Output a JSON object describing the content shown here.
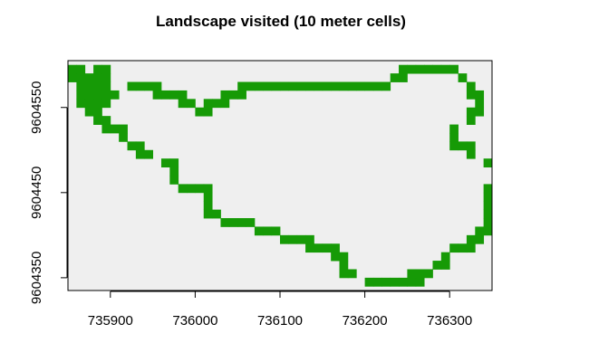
{
  "chart_data": {
    "type": "heatmap",
    "title": "Landscape visited (10 meter cells)",
    "xlabel": "",
    "ylabel": "",
    "xlim": [
      735850,
      736350
    ],
    "ylim": [
      9604335,
      9604605
    ],
    "x_ticks": [
      735900,
      736000,
      736100,
      736200,
      736300
    ],
    "y_ticks": [
      9604350,
      9604450,
      9604550
    ],
    "x_tick_labels": [
      "735900",
      "736000",
      "736100",
      "736200",
      "736300"
    ],
    "y_tick_labels": [
      "9604350",
      "9604450",
      "9604550"
    ],
    "cell_size": 10,
    "colors": {
      "background_cell": "#efefef",
      "visited_cell": "#169a06"
    },
    "visited_cells": [
      [
        735850,
        9604590
      ],
      [
        735860,
        9604590
      ],
      [
        735880,
        9604590
      ],
      [
        735890,
        9604590
      ],
      [
        735850,
        9604580
      ],
      [
        735860,
        9604580
      ],
      [
        735870,
        9604580
      ],
      [
        735880,
        9604580
      ],
      [
        735890,
        9604580
      ],
      [
        735860,
        9604570
      ],
      [
        735870,
        9604570
      ],
      [
        735880,
        9604570
      ],
      [
        735890,
        9604570
      ],
      [
        735860,
        9604560
      ],
      [
        735870,
        9604560
      ],
      [
        735880,
        9604560
      ],
      [
        735890,
        9604560
      ],
      [
        735900,
        9604560
      ],
      [
        735860,
        9604550
      ],
      [
        735870,
        9604550
      ],
      [
        735880,
        9604550
      ],
      [
        735890,
        9604550
      ],
      [
        735870,
        9604540
      ],
      [
        735880,
        9604540
      ],
      [
        735880,
        9604530
      ],
      [
        735890,
        9604530
      ],
      [
        735890,
        9604520
      ],
      [
        735900,
        9604520
      ],
      [
        735910,
        9604520
      ],
      [
        735910,
        9604510
      ],
      [
        735920,
        9604500
      ],
      [
        735930,
        9604500
      ],
      [
        735930,
        9604490
      ],
      [
        735940,
        9604490
      ],
      [
        735960,
        9604480
      ],
      [
        735970,
        9604480
      ],
      [
        735970,
        9604470
      ],
      [
        735970,
        9604460
      ],
      [
        735980,
        9604450
      ],
      [
        735990,
        9604450
      ],
      [
        736000,
        9604450
      ],
      [
        736010,
        9604450
      ],
      [
        736010,
        9604440
      ],
      [
        736010,
        9604430
      ],
      [
        736010,
        9604420
      ],
      [
        736020,
        9604420
      ],
      [
        736030,
        9604410
      ],
      [
        736040,
        9604410
      ],
      [
        736050,
        9604410
      ],
      [
        736060,
        9604410
      ],
      [
        736070,
        9604400
      ],
      [
        736080,
        9604400
      ],
      [
        736090,
        9604400
      ],
      [
        736100,
        9604390
      ],
      [
        736110,
        9604390
      ],
      [
        736120,
        9604390
      ],
      [
        736130,
        9604390
      ],
      [
        736130,
        9604380
      ],
      [
        736140,
        9604380
      ],
      [
        736150,
        9604380
      ],
      [
        736160,
        9604380
      ],
      [
        736160,
        9604370
      ],
      [
        736170,
        9604370
      ],
      [
        736170,
        9604360
      ],
      [
        736170,
        9604350
      ],
      [
        736180,
        9604350
      ],
      [
        736200,
        9604340
      ],
      [
        736210,
        9604340
      ],
      [
        736220,
        9604340
      ],
      [
        736230,
        9604340
      ],
      [
        736240,
        9604340
      ],
      [
        736250,
        9604340
      ],
      [
        736260,
        9604340
      ],
      [
        736250,
        9604350
      ],
      [
        736260,
        9604350
      ],
      [
        736270,
        9604350
      ],
      [
        736280,
        9604360
      ],
      [
        736290,
        9604360
      ],
      [
        736290,
        9604370
      ],
      [
        736300,
        9604380
      ],
      [
        736310,
        9604380
      ],
      [
        736320,
        9604380
      ],
      [
        736320,
        9604390
      ],
      [
        736330,
        9604390
      ],
      [
        736330,
        9604400
      ],
      [
        736340,
        9604400
      ],
      [
        736340,
        9604410
      ],
      [
        736340,
        9604420
      ],
      [
        736340,
        9604430
      ],
      [
        736340,
        9604440
      ],
      [
        736340,
        9604450
      ],
      [
        736340,
        9604480
      ],
      [
        736320,
        9604490
      ],
      [
        736300,
        9604500
      ],
      [
        736310,
        9604500
      ],
      [
        736320,
        9604500
      ],
      [
        736300,
        9604510
      ],
      [
        736300,
        9604520
      ],
      [
        736320,
        9604530
      ],
      [
        736320,
        9604540
      ],
      [
        736330,
        9604540
      ],
      [
        736330,
        9604550
      ],
      [
        736330,
        9604560
      ],
      [
        736320,
        9604560
      ],
      [
        736320,
        9604570
      ],
      [
        736310,
        9604580
      ],
      [
        736280,
        9604590
      ],
      [
        736290,
        9604590
      ],
      [
        736300,
        9604590
      ],
      [
        736240,
        9604590
      ],
      [
        736250,
        9604590
      ],
      [
        736260,
        9604590
      ],
      [
        736270,
        9604590
      ],
      [
        736230,
        9604580
      ],
      [
        736240,
        9604580
      ],
      [
        736220,
        9604570
      ],
      [
        736090,
        9604570
      ],
      [
        736100,
        9604570
      ],
      [
        736110,
        9604570
      ],
      [
        736120,
        9604570
      ],
      [
        736130,
        9604570
      ],
      [
        736140,
        9604570
      ],
      [
        736150,
        9604570
      ],
      [
        736160,
        9604570
      ],
      [
        736170,
        9604570
      ],
      [
        736180,
        9604570
      ],
      [
        736190,
        9604570
      ],
      [
        736200,
        9604570
      ],
      [
        736210,
        9604570
      ],
      [
        736050,
        9604570
      ],
      [
        736060,
        9604570
      ],
      [
        736070,
        9604570
      ],
      [
        736080,
        9604570
      ],
      [
        736030,
        9604560
      ],
      [
        736040,
        9604560
      ],
      [
        736050,
        9604560
      ],
      [
        736010,
        9604550
      ],
      [
        736020,
        9604550
      ],
      [
        736030,
        9604550
      ],
      [
        736000,
        9604540
      ],
      [
        736010,
        9604540
      ],
      [
        735980,
        9604550
      ],
      [
        735990,
        9604550
      ],
      [
        735950,
        9604560
      ],
      [
        735960,
        9604560
      ],
      [
        735970,
        9604560
      ],
      [
        735980,
        9604560
      ],
      [
        735920,
        9604570
      ],
      [
        735930,
        9604570
      ],
      [
        735940,
        9604570
      ],
      [
        735950,
        9604570
      ]
    ]
  }
}
